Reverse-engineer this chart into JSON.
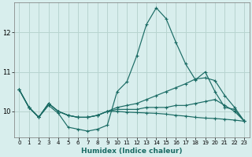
{
  "xlabel": "Humidex (Indice chaleur)",
  "xlim": [
    -0.5,
    23.5
  ],
  "ylim": [
    9.35,
    12.75
  ],
  "xticks": [
    0,
    1,
    2,
    3,
    4,
    5,
    6,
    7,
    8,
    9,
    10,
    11,
    12,
    13,
    14,
    15,
    16,
    17,
    18,
    19,
    20,
    21,
    22,
    23
  ],
  "yticks": [
    10,
    11,
    12
  ],
  "bg_color": "#d8eeed",
  "grid_color": "#b8d4d0",
  "line_color": "#1a6b64",
  "line1_x": [
    0,
    1,
    2,
    3,
    4,
    5,
    6,
    7,
    8,
    9,
    10,
    11,
    12,
    13,
    14,
    15,
    16,
    17,
    18,
    19,
    20,
    21,
    22,
    23
  ],
  "line1_y": [
    10.55,
    10.1,
    9.85,
    10.15,
    9.95,
    9.6,
    9.55,
    9.5,
    9.55,
    9.65,
    10.5,
    10.75,
    11.4,
    12.2,
    12.62,
    12.35,
    11.75,
    11.2,
    10.8,
    11.0,
    10.5,
    10.1,
    10.05,
    9.75
  ],
  "line2_x": [
    0,
    1,
    2,
    3,
    4,
    5,
    6,
    7,
    8,
    9,
    10,
    11,
    12,
    13,
    14,
    15,
    16,
    17,
    18,
    19,
    20,
    21,
    22,
    23
  ],
  "line2_y": [
    10.55,
    10.1,
    9.85,
    10.2,
    10.0,
    9.9,
    9.85,
    9.85,
    9.9,
    10.0,
    10.1,
    10.15,
    10.2,
    10.3,
    10.4,
    10.5,
    10.6,
    10.7,
    10.82,
    10.85,
    10.78,
    10.4,
    10.1,
    9.75
  ],
  "line3_x": [
    0,
    1,
    2,
    3,
    4,
    5,
    6,
    7,
    8,
    9,
    10,
    11,
    12,
    13,
    14,
    15,
    16,
    17,
    18,
    19,
    20,
    21,
    22,
    23
  ],
  "line3_y": [
    10.55,
    10.1,
    9.85,
    10.2,
    10.0,
    9.9,
    9.85,
    9.85,
    9.9,
    10.0,
    10.05,
    10.05,
    10.05,
    10.1,
    10.1,
    10.1,
    10.15,
    10.15,
    10.2,
    10.25,
    10.3,
    10.15,
    10.0,
    9.75
  ],
  "line4_x": [
    0,
    1,
    2,
    3,
    4,
    5,
    6,
    7,
    8,
    9,
    10,
    11,
    12,
    13,
    14,
    15,
    16,
    17,
    18,
    19,
    20,
    21,
    22,
    23
  ],
  "line4_y": [
    10.55,
    10.1,
    9.85,
    10.2,
    10.0,
    9.9,
    9.85,
    9.85,
    9.9,
    10.0,
    10.0,
    9.98,
    9.97,
    9.96,
    9.95,
    9.93,
    9.9,
    9.88,
    9.85,
    9.83,
    9.82,
    9.8,
    9.78,
    9.75
  ]
}
